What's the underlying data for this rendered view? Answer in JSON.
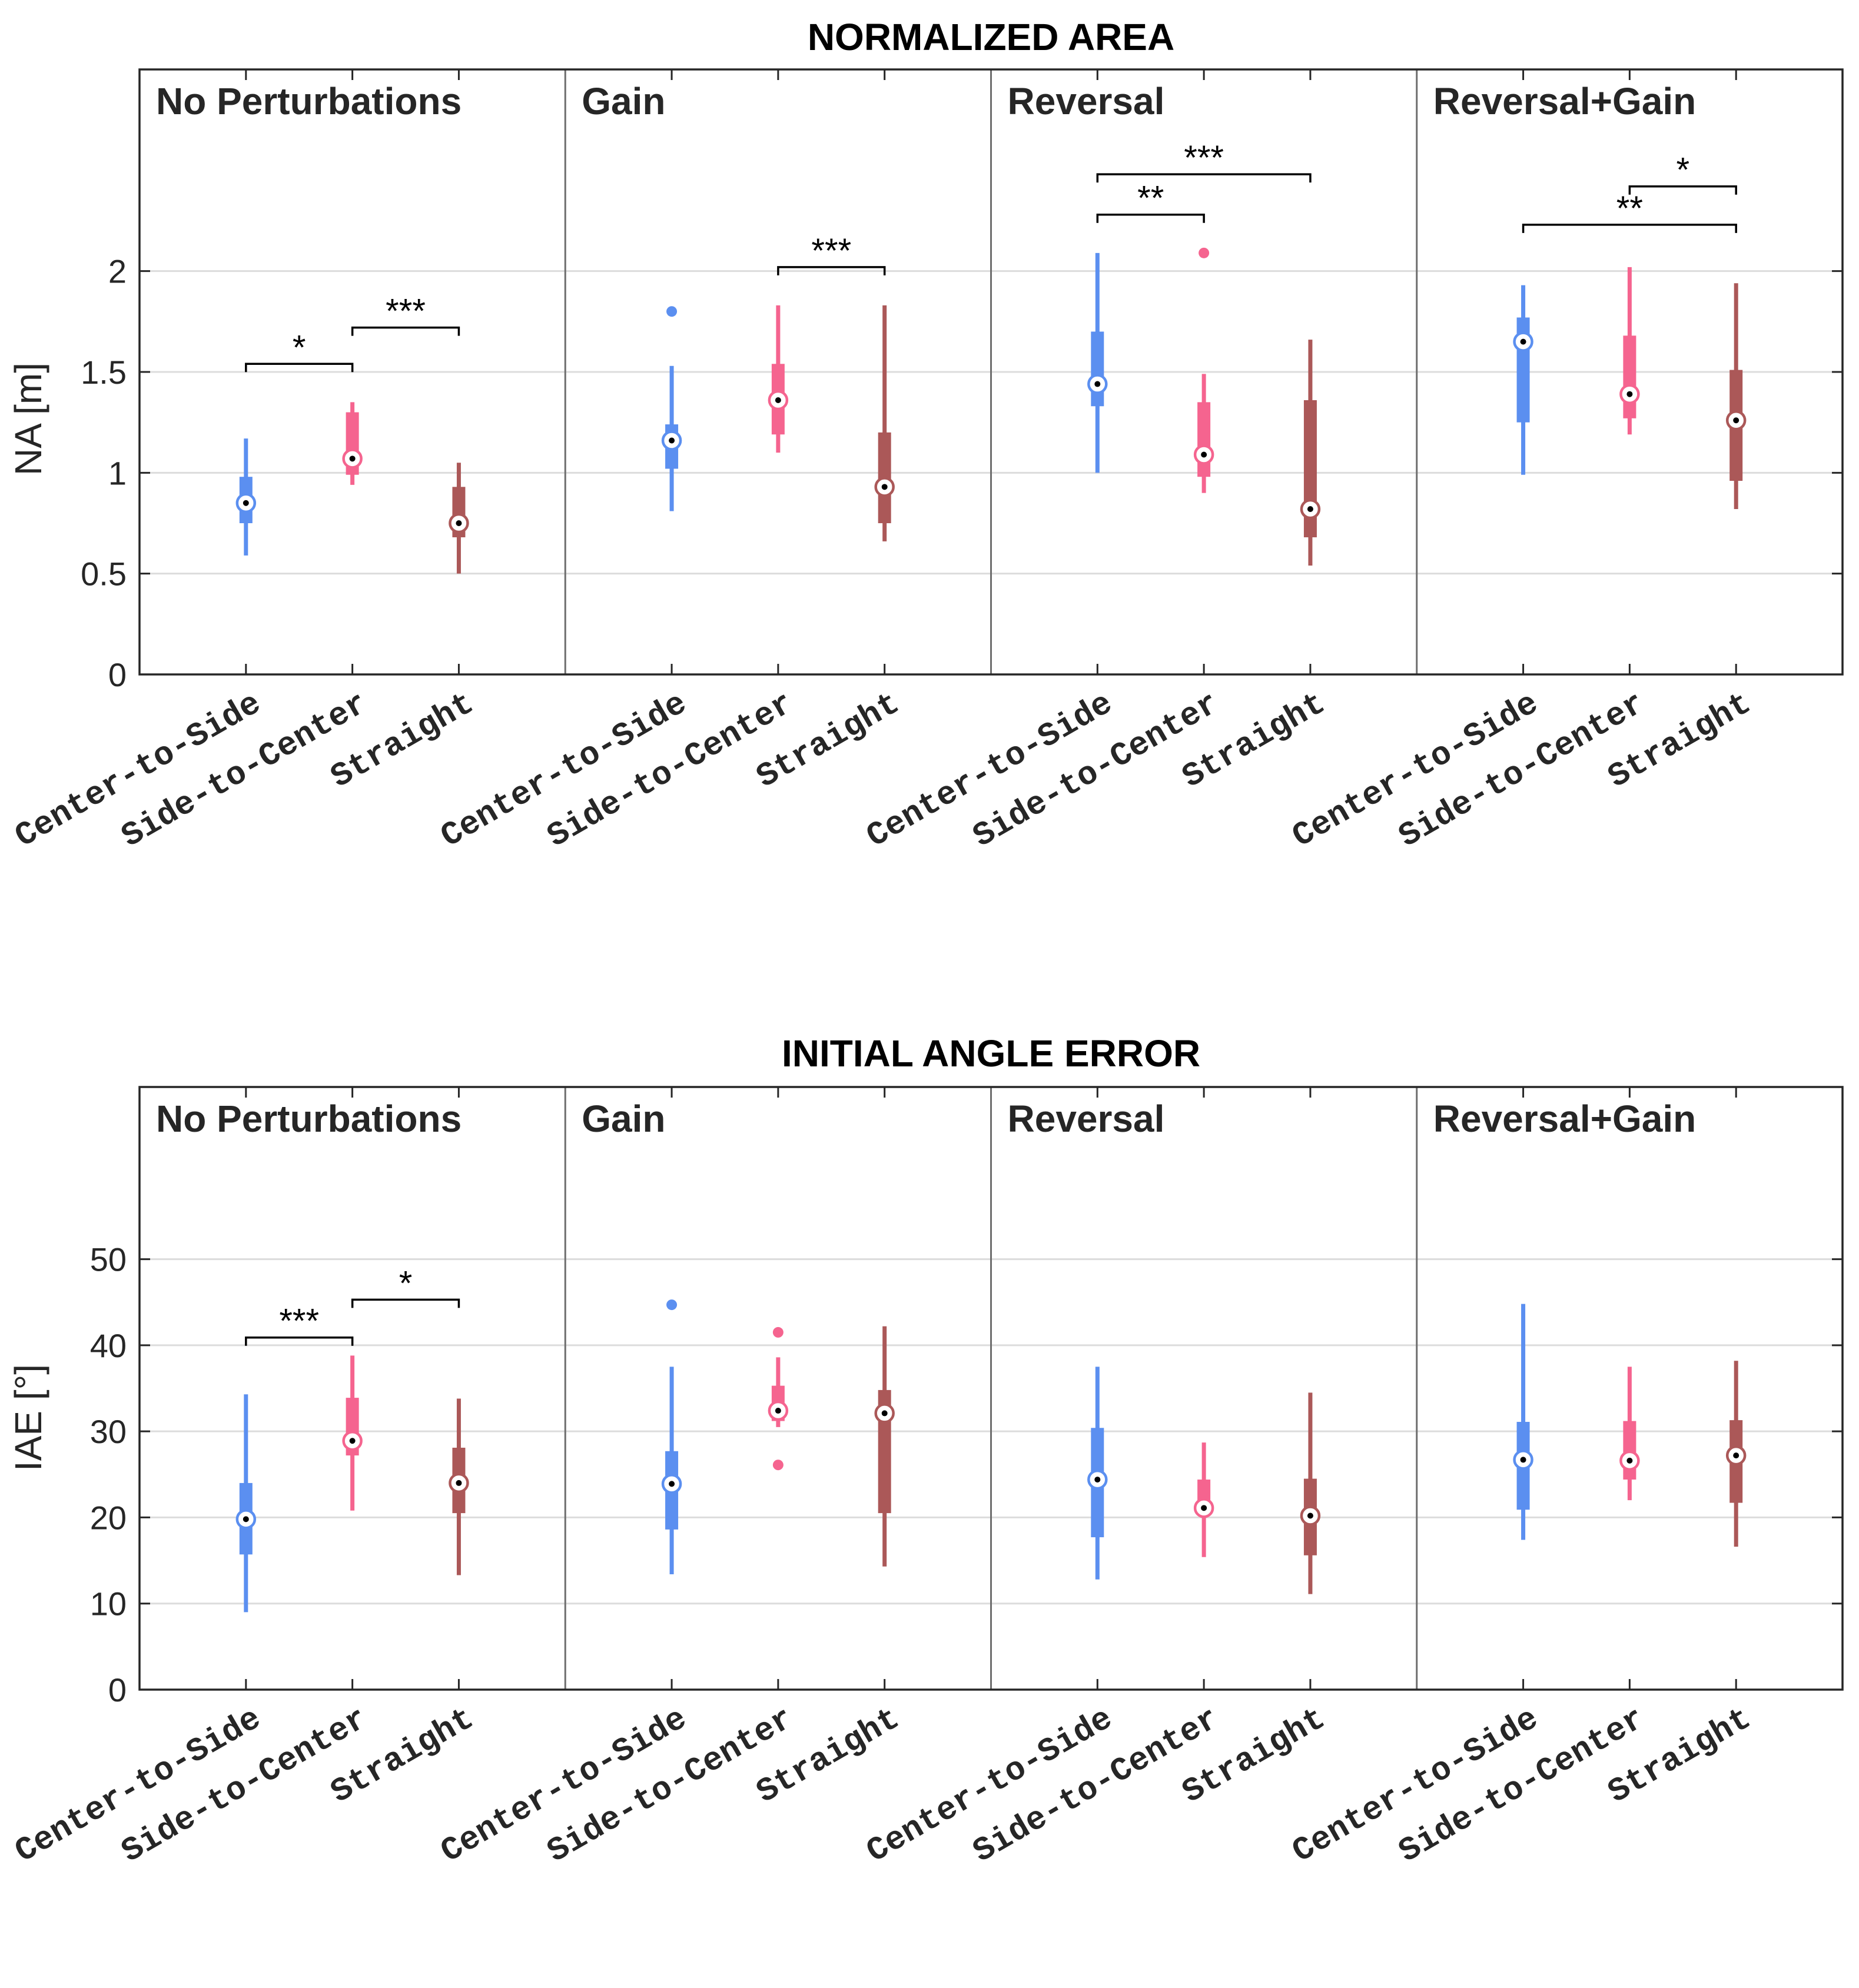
{
  "figure": {
    "colors": {
      "center_to_side": "#5b8ff0",
      "side_to_center": "#f5648f",
      "straight": "#ab5858",
      "axis": "#262626",
      "grid": "#dcdcdc"
    }
  },
  "chart_data": [
    {
      "type": "boxplot",
      "title": "NORMALIZED AREA",
      "ylabel": "NA [m]",
      "ylim": [
        0,
        3.0
      ],
      "yticks": [
        0,
        0.5,
        1,
        1.5,
        2
      ],
      "ytick_labels": [
        "0",
        "0.5",
        "1",
        "1.5",
        "2"
      ],
      "grid": true,
      "categories": [
        "Center-to-Side",
        "Side-to-Center",
        "Straight"
      ],
      "panels": [
        {
          "name": "No Perturbations",
          "boxes": [
            {
              "category": "Center-to-Side",
              "whisker_low": 0.59,
              "q1": 0.75,
              "median": 0.85,
              "q3": 0.98,
              "whisker_high": 1.17,
              "outliers": []
            },
            {
              "category": "Side-to-Center",
              "whisker_low": 0.94,
              "q1": 0.99,
              "median": 1.07,
              "q3": 1.3,
              "whisker_high": 1.35,
              "outliers": []
            },
            {
              "category": "Straight",
              "whisker_low": 0.5,
              "q1": 0.68,
              "median": 0.75,
              "q3": 0.93,
              "whisker_high": 1.05,
              "outliers": []
            }
          ],
          "significance": [
            {
              "from": 0,
              "to": 1,
              "y": 1.54,
              "label": "*"
            },
            {
              "from": 1,
              "to": 2,
              "y": 1.72,
              "label": "***"
            }
          ]
        },
        {
          "name": "Gain",
          "boxes": [
            {
              "category": "Center-to-Side",
              "whisker_low": 0.81,
              "q1": 1.02,
              "median": 1.16,
              "q3": 1.24,
              "whisker_high": 1.53,
              "outliers": [
                1.8
              ]
            },
            {
              "category": "Side-to-Center",
              "whisker_low": 1.1,
              "q1": 1.19,
              "median": 1.36,
              "q3": 1.54,
              "whisker_high": 1.83,
              "outliers": []
            },
            {
              "category": "Straight",
              "whisker_low": 0.66,
              "q1": 0.75,
              "median": 0.93,
              "q3": 1.2,
              "whisker_high": 1.83,
              "outliers": []
            }
          ],
          "significance": [
            {
              "from": 1,
              "to": 2,
              "y": 2.02,
              "label": "***"
            }
          ]
        },
        {
          "name": "Reversal",
          "boxes": [
            {
              "category": "Center-to-Side",
              "whisker_low": 1.0,
              "q1": 1.33,
              "median": 1.44,
              "q3": 1.7,
              "whisker_high": 2.09,
              "outliers": []
            },
            {
              "category": "Side-to-Center",
              "whisker_low": 0.9,
              "q1": 0.98,
              "median": 1.09,
              "q3": 1.35,
              "whisker_high": 1.49,
              "outliers": [
                2.09
              ]
            },
            {
              "category": "Straight",
              "whisker_low": 0.54,
              "q1": 0.68,
              "median": 0.82,
              "q3": 1.36,
              "whisker_high": 1.66,
              "outliers": []
            }
          ],
          "significance": [
            {
              "from": 0,
              "to": 1,
              "y": 2.28,
              "label": "**"
            },
            {
              "from": 0,
              "to": 2,
              "y": 2.48,
              "label": "***"
            }
          ]
        },
        {
          "name": "Reversal+Gain",
          "boxes": [
            {
              "category": "Center-to-Side",
              "whisker_low": 0.99,
              "q1": 1.25,
              "median": 1.65,
              "q3": 1.77,
              "whisker_high": 1.93,
              "outliers": []
            },
            {
              "category": "Side-to-Center",
              "whisker_low": 1.19,
              "q1": 1.27,
              "median": 1.39,
              "q3": 1.68,
              "whisker_high": 2.02,
              "outliers": []
            },
            {
              "category": "Straight",
              "whisker_low": 0.82,
              "q1": 0.96,
              "median": 1.26,
              "q3": 1.51,
              "whisker_high": 1.94,
              "outliers": []
            }
          ],
          "significance": [
            {
              "from": 0,
              "to": 2,
              "y": 2.23,
              "label": "**"
            },
            {
              "from": 1,
              "to": 2,
              "y": 2.42,
              "label": "*"
            }
          ]
        }
      ]
    },
    {
      "type": "boxplot",
      "title": "INITIAL ANGLE ERROR",
      "ylabel": "IAE [°]",
      "ylim": [
        0,
        70
      ],
      "yticks": [
        0,
        10,
        20,
        30,
        40,
        50
      ],
      "ytick_labels": [
        "0",
        "10",
        "20",
        "30",
        "40",
        "50"
      ],
      "grid": true,
      "categories": [
        "Center-to-Side",
        "Side-to-Center",
        "Straight"
      ],
      "panels": [
        {
          "name": "No Perturbations",
          "boxes": [
            {
              "category": "Center-to-Side",
              "whisker_low": 9.0,
              "q1": 15.7,
              "median": 19.8,
              "q3": 24.0,
              "whisker_high": 34.3,
              "outliers": []
            },
            {
              "category": "Side-to-Center",
              "whisker_low": 20.8,
              "q1": 27.2,
              "median": 28.9,
              "q3": 33.9,
              "whisker_high": 38.8,
              "outliers": []
            },
            {
              "category": "Straight",
              "whisker_low": 13.3,
              "q1": 20.5,
              "median": 24.0,
              "q3": 28.1,
              "whisker_high": 33.8,
              "outliers": []
            }
          ],
          "significance": [
            {
              "from": 0,
              "to": 1,
              "y": 40.9,
              "label": "***"
            },
            {
              "from": 1,
              "to": 2,
              "y": 45.3,
              "label": "*"
            }
          ]
        },
        {
          "name": "Gain",
          "boxes": [
            {
              "category": "Center-to-Side",
              "whisker_low": 13.4,
              "q1": 18.6,
              "median": 23.9,
              "q3": 27.7,
              "whisker_high": 37.5,
              "outliers": [
                44.7
              ]
            },
            {
              "category": "Side-to-Center",
              "whisker_low": 30.5,
              "q1": 31.2,
              "median": 32.4,
              "q3": 35.3,
              "whisker_high": 38.6,
              "outliers": [
                41.5,
                26.1
              ]
            },
            {
              "category": "Straight",
              "whisker_low": 14.3,
              "q1": 20.5,
              "median": 32.1,
              "q3": 34.8,
              "whisker_high": 42.2,
              "outliers": []
            }
          ],
          "significance": []
        },
        {
          "name": "Reversal",
          "boxes": [
            {
              "category": "Center-to-Side",
              "whisker_low": 12.8,
              "q1": 17.7,
              "median": 24.4,
              "q3": 30.4,
              "whisker_high": 37.5,
              "outliers": []
            },
            {
              "category": "Side-to-Center",
              "whisker_low": 15.4,
              "q1": 20.3,
              "median": 21.1,
              "q3": 24.4,
              "whisker_high": 28.7,
              "outliers": []
            },
            {
              "category": "Straight",
              "whisker_low": 11.1,
              "q1": 15.6,
              "median": 20.2,
              "q3": 24.5,
              "whisker_high": 34.5,
              "outliers": []
            }
          ],
          "significance": []
        },
        {
          "name": "Reversal+Gain",
          "boxes": [
            {
              "category": "Center-to-Side",
              "whisker_low": 17.4,
              "q1": 20.9,
              "median": 26.7,
              "q3": 31.1,
              "whisker_high": 44.8,
              "outliers": []
            },
            {
              "category": "Side-to-Center",
              "whisker_low": 22.0,
              "q1": 24.4,
              "median": 26.6,
              "q3": 31.2,
              "whisker_high": 37.5,
              "outliers": []
            },
            {
              "category": "Straight",
              "whisker_low": 16.6,
              "q1": 21.7,
              "median": 27.2,
              "q3": 31.3,
              "whisker_high": 38.2,
              "outliers": []
            }
          ],
          "significance": []
        }
      ]
    }
  ]
}
